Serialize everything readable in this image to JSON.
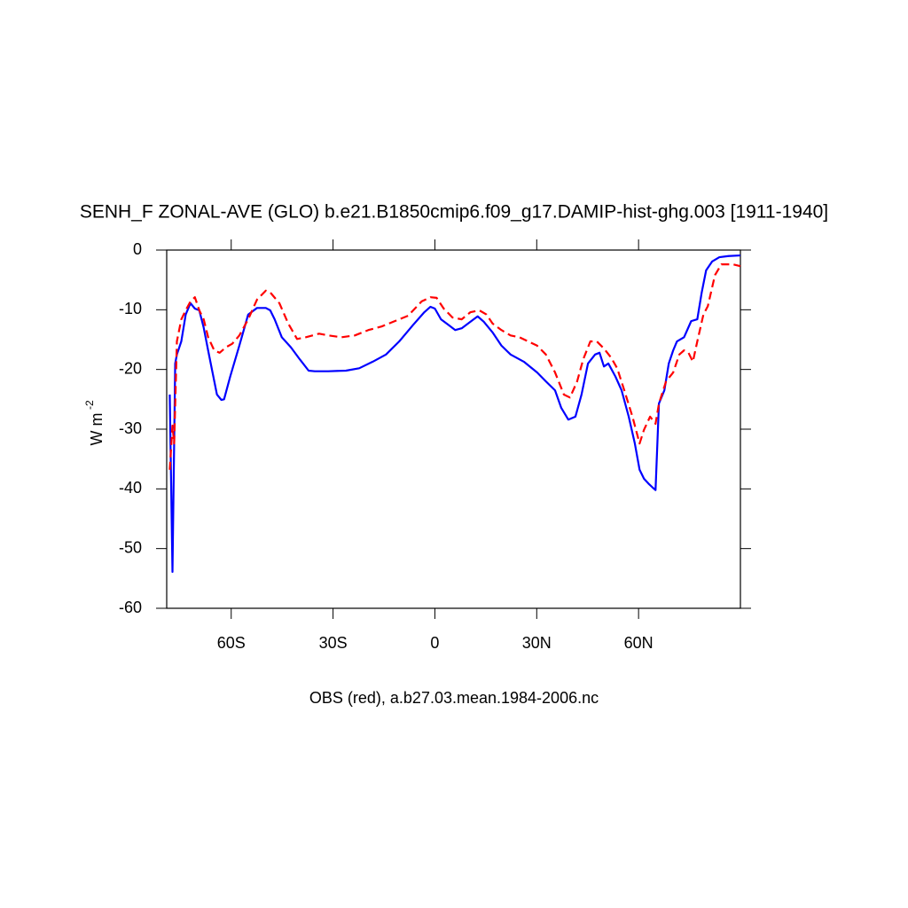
{
  "chart_data": {
    "type": "line",
    "title": "SENH_F ZONAL-AVE (GLO) b.e21.B1850cmip6.f09_g17.DAMIP-hist-ghg.003 [1911-1940]",
    "x_label": "OBS (red), a.b27.03.mean.1984-2006.nc",
    "y_label": "W m",
    "y_label_sup": "-2",
    "xlim": [
      -79,
      90
    ],
    "ylim": [
      -60,
      0
    ],
    "xticks": [
      {
        "value": -60,
        "label": "60S"
      },
      {
        "value": -30,
        "label": "30S"
      },
      0,
      {
        "value": 30,
        "label": "30N"
      },
      {
        "value": 60,
        "label": "60N"
      }
    ],
    "yticks": [
      0,
      -10,
      -20,
      -30,
      -40,
      -50,
      -60
    ],
    "series": [
      {
        "color": "#0000ff",
        "dash": "solid",
        "x": [
          -78.1,
          -77.3,
          -76.5,
          -76,
          -74.7,
          -73.4,
          -72,
          -70.7,
          -69.4,
          -68.1,
          -66.8,
          -65.5,
          -64.2,
          -62.9,
          -62.1,
          -60.3,
          -57.6,
          -55,
          -52.4,
          -49.8,
          -48.5,
          -47.2,
          -45.1,
          -42.4,
          -39.8,
          -37.2,
          -35.4,
          -31.4,
          -26.2,
          -22.3,
          -18.3,
          -14.4,
          -10.5,
          -6.5,
          -3.1,
          -1.3,
          0,
          1.8,
          3.9,
          6,
          7.9,
          10.5,
          12.6,
          14.4,
          17,
          19.6,
          22.3,
          26.2,
          30.1,
          32.7,
          35.4,
          37.2,
          39.3,
          41.4,
          43.2,
          45.1,
          47.2,
          48.5,
          49.8,
          51.1,
          53.2,
          55,
          57.1,
          58.9,
          60.3,
          61.6,
          62.9,
          64.2,
          65,
          66,
          67.6,
          68.9,
          70.2,
          71.3,
          73.4,
          75.5,
          77.3,
          78.6,
          79.9,
          81.7,
          83.8,
          86.5,
          90
        ],
        "values": [
          -24.2,
          -53.9,
          -19,
          -17.5,
          -15.3,
          -10.8,
          -8.9,
          -9.8,
          -10.1,
          -13,
          -16.8,
          -20.5,
          -24.2,
          -25.1,
          -25,
          -21.2,
          -16,
          -10.8,
          -9.7,
          -9.7,
          -10.1,
          -11.6,
          -14.6,
          -16.3,
          -18.3,
          -20.2,
          -20.3,
          -20.3,
          -20.2,
          -19.8,
          -18.7,
          -17.5,
          -15.3,
          -12.6,
          -10.4,
          -9.5,
          -9.8,
          -11.6,
          -12.5,
          -13.4,
          -13.1,
          -12,
          -11.1,
          -12,
          -13.8,
          -16,
          -17.5,
          -18.7,
          -20.5,
          -22,
          -23.5,
          -26.4,
          -28.4,
          -27.9,
          -24.2,
          -19,
          -17.5,
          -17.2,
          -19.5,
          -19,
          -21.2,
          -23.5,
          -27.9,
          -32.4,
          -36.8,
          -38.3,
          -39.1,
          -39.8,
          -40.2,
          -25.7,
          -23.5,
          -19,
          -16.8,
          -15.3,
          -14.6,
          -11.9,
          -11.6,
          -7.1,
          -3.4,
          -1.9,
          -1.2,
          -1,
          -0.9
        ]
      },
      {
        "color": "#ff0000",
        "dash": "dashed",
        "x": [
          -78.1,
          -77.3,
          -76.8,
          -76,
          -74.7,
          -73.4,
          -72,
          -70.7,
          -69.4,
          -68.1,
          -66.8,
          -65,
          -63.4,
          -61.6,
          -59.7,
          -57.6,
          -55,
          -52.4,
          -49.8,
          -48.5,
          -45.8,
          -43.2,
          -40.6,
          -38,
          -34.1,
          -31.4,
          -27.5,
          -23.6,
          -19.6,
          -15.7,
          -11.8,
          -7.9,
          -3.9,
          -1.3,
          0.5,
          2.6,
          5.2,
          7.9,
          10.5,
          13.1,
          15.2,
          17,
          19.6,
          22.3,
          24.9,
          27.5,
          30.1,
          32.7,
          35.4,
          38,
          39.8,
          41.9,
          43.7,
          45.8,
          47.7,
          49.8,
          51.9,
          53.7,
          55.8,
          58.2,
          60.3,
          61.6,
          63.4,
          65,
          66,
          68.1,
          70.2,
          72,
          73.4,
          74.7,
          76,
          77.3,
          79.1,
          80.4,
          82.5,
          84.4,
          87.8,
          90
        ],
        "values": [
          -36.8,
          -29.4,
          -32.4,
          -15.3,
          -11.6,
          -10.1,
          -8.6,
          -7.9,
          -10.1,
          -11.6,
          -14.6,
          -16.8,
          -17.2,
          -16.3,
          -15.7,
          -14.3,
          -11.6,
          -8.3,
          -6.8,
          -7.1,
          -8.9,
          -12.3,
          -14.9,
          -14.6,
          -14,
          -14.3,
          -14.6,
          -14.3,
          -13.4,
          -12.8,
          -11.9,
          -11,
          -8.6,
          -7.9,
          -8,
          -9.8,
          -11.3,
          -11.6,
          -10.4,
          -10.1,
          -10.8,
          -12.3,
          -13.4,
          -14.3,
          -14.6,
          -15.3,
          -16,
          -17.5,
          -20.5,
          -24.2,
          -24.7,
          -22,
          -18.3,
          -15.3,
          -15.3,
          -16.5,
          -18,
          -19.8,
          -23.5,
          -27.9,
          -32.4,
          -30.1,
          -27.9,
          -29.1,
          -25.7,
          -22,
          -20.5,
          -17.5,
          -16.8,
          -17.2,
          -18.7,
          -15.3,
          -10.8,
          -9.4,
          -4.2,
          -2.4,
          -2.4,
          -2.7
        ]
      }
    ]
  }
}
